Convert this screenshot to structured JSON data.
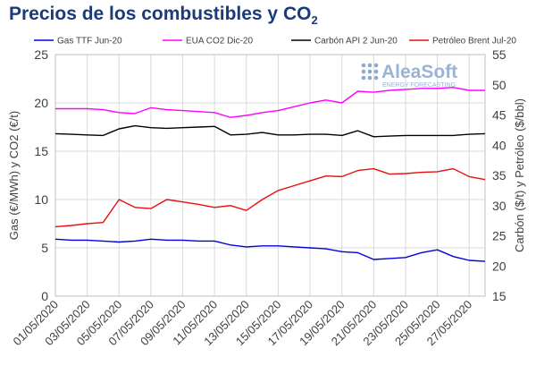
{
  "title_main": "Precios de los combustibles y CO",
  "title_sub": "2",
  "logo": {
    "brand": "AleaSoft",
    "tagline": "ENERGY FORECASTING"
  },
  "chart_data": {
    "type": "line",
    "x": [
      "01/05/2020",
      "02/05/2020",
      "03/05/2020",
      "04/05/2020",
      "05/05/2020",
      "06/05/2020",
      "07/05/2020",
      "08/05/2020",
      "09/05/2020",
      "10/05/2020",
      "11/05/2020",
      "12/05/2020",
      "13/05/2020",
      "14/05/2020",
      "15/05/2020",
      "16/05/2020",
      "17/05/2020",
      "18/05/2020",
      "19/05/2020",
      "20/05/2020",
      "21/05/2020",
      "22/05/2020",
      "23/05/2020",
      "24/05/2020",
      "25/05/2020",
      "26/05/2020",
      "27/05/2020",
      "28/05/2020"
    ],
    "xticks": [
      "01/05/2020",
      "03/05/2020",
      "05/05/2020",
      "07/05/2020",
      "09/05/2020",
      "11/05/2020",
      "13/05/2020",
      "15/05/2020",
      "17/05/2020",
      "19/05/2020",
      "21/05/2020",
      "23/05/2020",
      "25/05/2020",
      "27/05/2020"
    ],
    "ylabel_left": "Gas (€/MWh) y CO2 (€/t)",
    "ylabel_right": "Carbón ($/t) y Petróleo ($/bbl)",
    "ylim_left": [
      0,
      25
    ],
    "yticks_left": [
      "0",
      "5",
      "10",
      "15",
      "20",
      "25"
    ],
    "ylim_right": [
      15,
      55
    ],
    "yticks_right": [
      "15",
      "20",
      "25",
      "30",
      "35",
      "40",
      "45",
      "50",
      "55"
    ],
    "grid": true,
    "legend": "top",
    "series": [
      {
        "name": "Gas TTF Jun-20",
        "color": "#0000e0",
        "axis": "left",
        "values": [
          5.9,
          5.8,
          5.8,
          5.7,
          5.6,
          5.7,
          5.9,
          5.8,
          5.8,
          5.7,
          5.7,
          5.3,
          5.1,
          5.2,
          5.2,
          5.1,
          5.0,
          4.9,
          4.6,
          4.5,
          3.8,
          3.9,
          4.0,
          4.5,
          4.8,
          4.1,
          3.7,
          3.6
        ]
      },
      {
        "name": "EUA CO2 Dic-20",
        "color": "#ff00ff",
        "axis": "left",
        "values": [
          19.4,
          19.4,
          19.4,
          19.3,
          19.0,
          18.9,
          19.5,
          19.3,
          19.2,
          19.1,
          19.0,
          18.5,
          18.7,
          19.0,
          19.2,
          19.6,
          20.0,
          20.3,
          20.0,
          21.2,
          21.1,
          21.3,
          21.4,
          21.5,
          21.5,
          21.6,
          21.3,
          21.3
        ]
      },
      {
        "name": "Carbón API 2 Jun-20",
        "color": "#000000",
        "axis": "right",
        "values": [
          41.9,
          41.8,
          41.7,
          41.6,
          42.7,
          43.2,
          42.9,
          42.8,
          42.9,
          43.0,
          43.1,
          41.7,
          41.8,
          42.1,
          41.7,
          41.7,
          41.8,
          41.8,
          41.6,
          42.4,
          41.4,
          41.5,
          41.6,
          41.6,
          41.6,
          41.6,
          41.8,
          41.9
        ]
      },
      {
        "name": "Petróleo Brent Jul-20",
        "color": "#e81010",
        "axis": "right",
        "values": [
          26.5,
          26.7,
          27.0,
          27.2,
          31.0,
          29.7,
          29.5,
          31.0,
          30.6,
          30.2,
          29.7,
          30.0,
          29.2,
          31.0,
          32.5,
          33.3,
          34.1,
          34.9,
          34.8,
          35.8,
          36.1,
          35.2,
          35.3,
          35.5,
          35.6,
          36.1,
          34.8,
          34.3
        ]
      }
    ]
  }
}
